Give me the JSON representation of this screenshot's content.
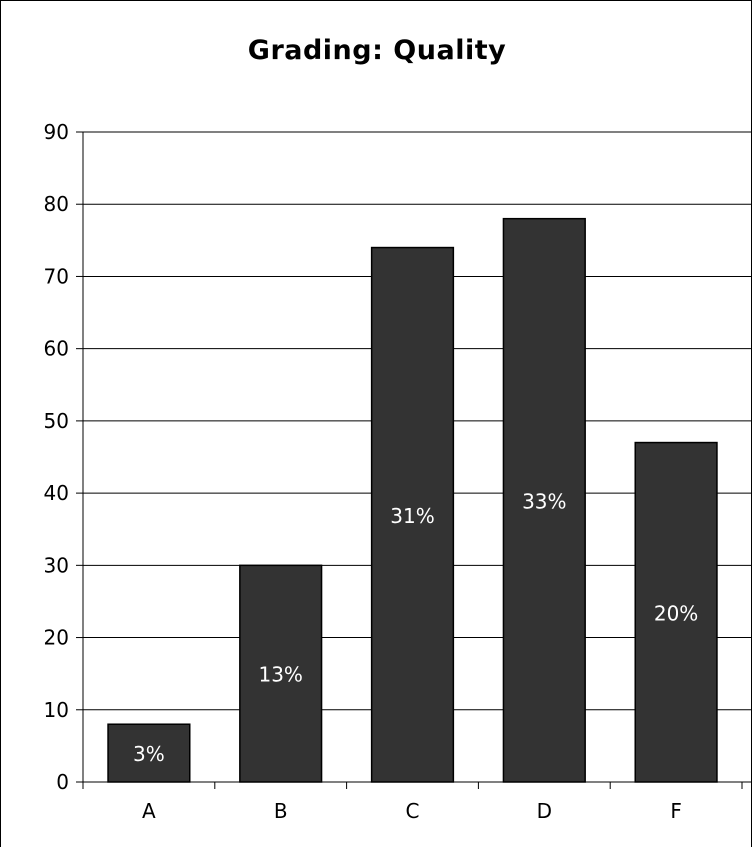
{
  "chart_data": {
    "type": "bar",
    "title": "Grading:  Quality",
    "xlabel": "",
    "ylabel": "",
    "categories": [
      "A",
      "B",
      "C",
      "D",
      "F"
    ],
    "values": [
      8,
      30,
      74,
      78,
      47
    ],
    "data_labels": [
      "3%",
      "13%",
      "31%",
      "33%",
      "20%"
    ],
    "ylim": [
      0,
      90
    ],
    "yticks": [
      0,
      10,
      20,
      30,
      40,
      50,
      60,
      70,
      80,
      90
    ],
    "grid": true,
    "legend": "none",
    "colors": {
      "bar": "#333333",
      "bar_edge": "#000000",
      "grid": "#000000",
      "label": "#ffffff"
    }
  }
}
